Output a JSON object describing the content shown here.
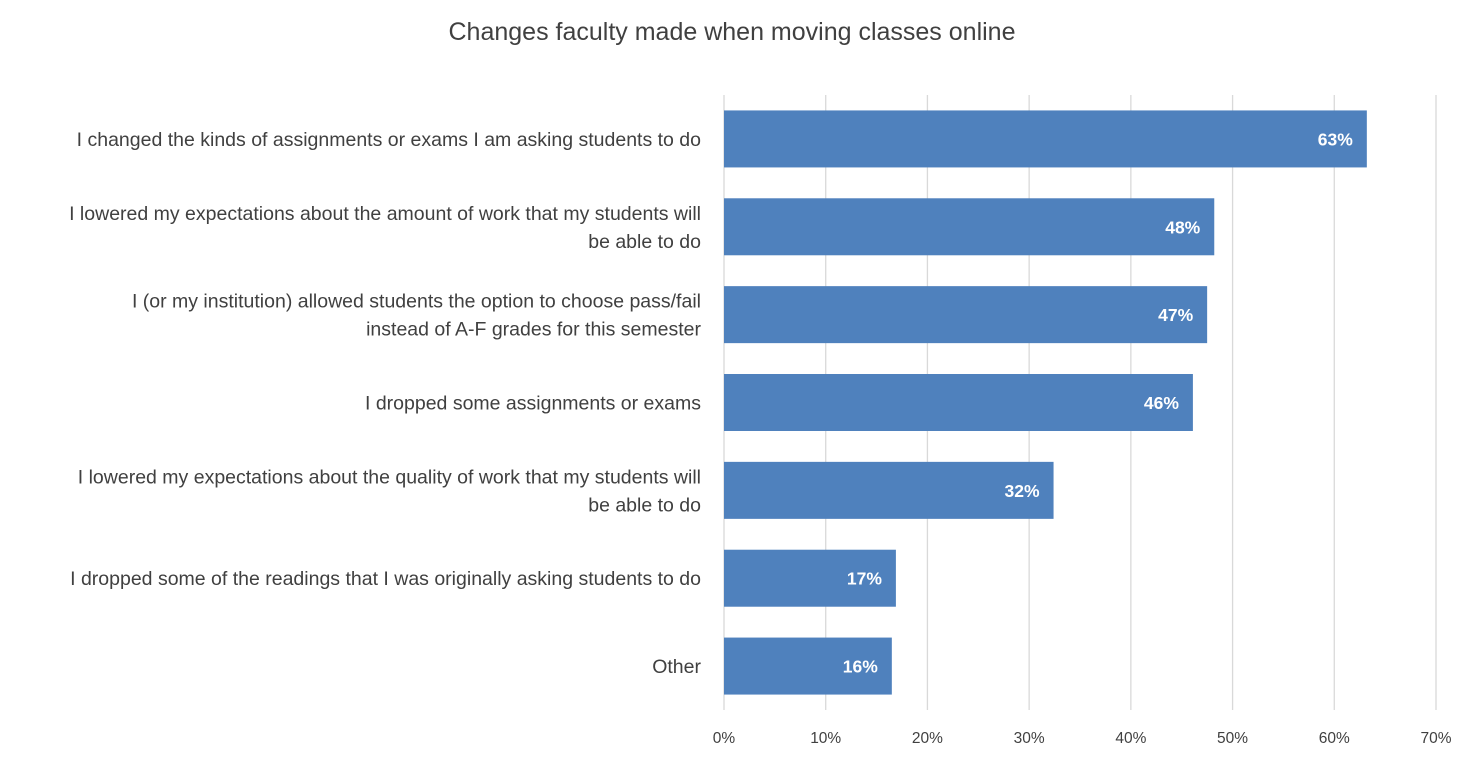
{
  "chart_data": {
    "type": "bar",
    "orientation": "horizontal",
    "title": "Changes faculty made when moving classes online",
    "xlabel": "",
    "ylabel": "",
    "xlim": [
      0,
      70
    ],
    "grid": true,
    "legend": "none",
    "bar_color": "#4f81bd",
    "grid_color": "#d9d9d9",
    "tick_labels": [
      "0%",
      "10%",
      "20%",
      "30%",
      "40%",
      "50%",
      "60%",
      "70%"
    ],
    "categories": [
      [
        "I changed the kinds of assignments or exams I am asking students to do"
      ],
      [
        "I lowered my expectations about the amount of work that my students will",
        "be able to do"
      ],
      [
        "I (or my institution) allowed students the option to choose pass/fail",
        "instead of A-F grades for this semester"
      ],
      [
        "I dropped some assignments or exams"
      ],
      [
        "I lowered my expectations about the quality of work that my students will",
        "be able to do"
      ],
      [
        "I dropped some of the readings that I was originally asking students to do"
      ],
      [
        "Other"
      ]
    ],
    "values": [
      63.2,
      48.2,
      47.5,
      46.1,
      32.4,
      16.9,
      16.5
    ],
    "data_labels": [
      "63%",
      "48%",
      "47%",
      "46%",
      "32%",
      "17%",
      "16%"
    ]
  }
}
